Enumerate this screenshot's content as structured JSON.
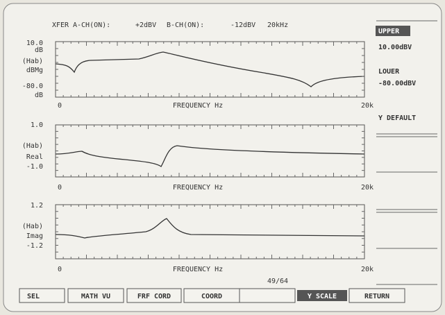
{
  "header": [
    "XFER",
    "A-CH(ON):",
    "+2dBV",
    "B-CH(ON):",
    "-12dBV",
    "20kHz"
  ],
  "plots": [
    {
      "ylabels": [
        "10.0",
        "dB",
        "(Hab)",
        "dBMg",
        "-80.0",
        "dB"
      ],
      "xlabels": [
        "0",
        "FREQUENCY Hz",
        "20k"
      ]
    },
    {
      "ylabels": [
        "1.0",
        "(Hab)",
        "Real",
        "-1.0"
      ],
      "xlabels": [
        "0",
        "FREQUENCY Hz",
        "20k"
      ]
    },
    {
      "ylabels": [
        "1.2",
        "(Hab)",
        "Imag",
        "-1.2"
      ],
      "xlabels": [
        "0",
        "FREQUENCY Hz",
        "20k"
      ]
    }
  ],
  "counter": "49/64",
  "side": {
    "upper": "UPPER",
    "upper_value": "10.00dBV",
    "lower": "LOUER",
    "lower_value": "-80.00dBV",
    "default": "Y DEFAULT"
  },
  "softkeys": [
    "SEL",
    "MATH VU",
    "FRF CORD",
    "COORD",
    "Y SCALE",
    "RETURN"
  ]
}
